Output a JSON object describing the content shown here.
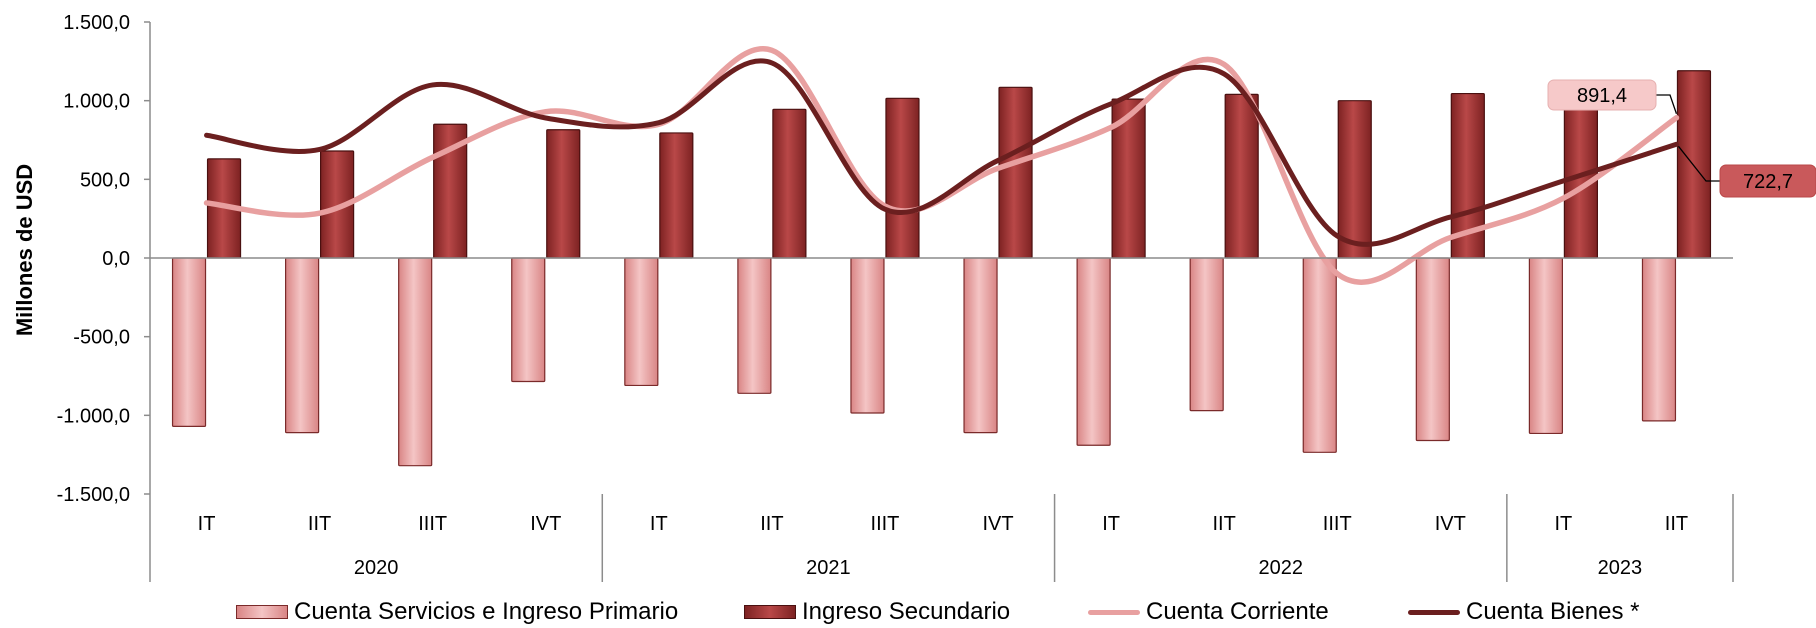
{
  "chart_data": {
    "type": "bar",
    "ylabel": "Millones de USD",
    "ylim": [
      -1500,
      1500
    ],
    "y_ticks": [
      "1.500,0",
      "1.000,0",
      "500,0",
      "0,0",
      "-500,0",
      "-1.000,0",
      "-1.500,0"
    ],
    "y_tick_values": [
      1500,
      1000,
      500,
      0,
      -500,
      -1000,
      -1500
    ],
    "categories": [
      "IT",
      "IIT",
      "IIIT",
      "IVT",
      "IT",
      "IIT",
      "IIIT",
      "IVT",
      "IT",
      "IIT",
      "IIIT",
      "IVT",
      "IT",
      "IIT"
    ],
    "years": [
      {
        "label": "2020",
        "span": 4
      },
      {
        "label": "2021",
        "span": 4
      },
      {
        "label": "2022",
        "span": 4
      },
      {
        "label": "2023",
        "span": 2
      }
    ],
    "series": [
      {
        "name": "Cuenta Servicios e Ingreso Primario",
        "kind": "bar",
        "color": "#e6a0a0",
        "values": [
          -1070,
          -1110,
          -1320,
          -785,
          -810,
          -860,
          -985,
          -1110,
          -1190,
          -970,
          -1235,
          -1160,
          -1115,
          -1035
        ]
      },
      {
        "name": "Ingreso Secundario",
        "kind": "bar",
        "color": "#a23a3a",
        "values": [
          630,
          680,
          850,
          815,
          795,
          945,
          1015,
          1085,
          1010,
          1040,
          1000,
          1045,
          990,
          1190
        ]
      },
      {
        "name": "Cuenta Corriente",
        "kind": "line",
        "color": "#e8a0a0",
        "values": [
          350,
          285,
          640,
          930,
          850,
          1320,
          330,
          570,
          830,
          1230,
          -100,
          130,
          380,
          891.4
        ]
      },
      {
        "name": "Cuenta Bienes *",
        "kind": "line",
        "color": "#6b1f1f",
        "values": [
          780,
          690,
          1100,
          890,
          860,
          1240,
          310,
          620,
          980,
          1170,
          140,
          260,
          490,
          722.7
        ]
      }
    ],
    "annotations": [
      {
        "series": "Cuenta Corriente",
        "index": 13,
        "text": "891,4",
        "fill": "#f6c9c9"
      },
      {
        "series": "Cuenta Bienes *",
        "index": 13,
        "text": "722,7",
        "fill": "#c9595b"
      }
    ],
    "legend_position": "bottom",
    "grid": false
  }
}
